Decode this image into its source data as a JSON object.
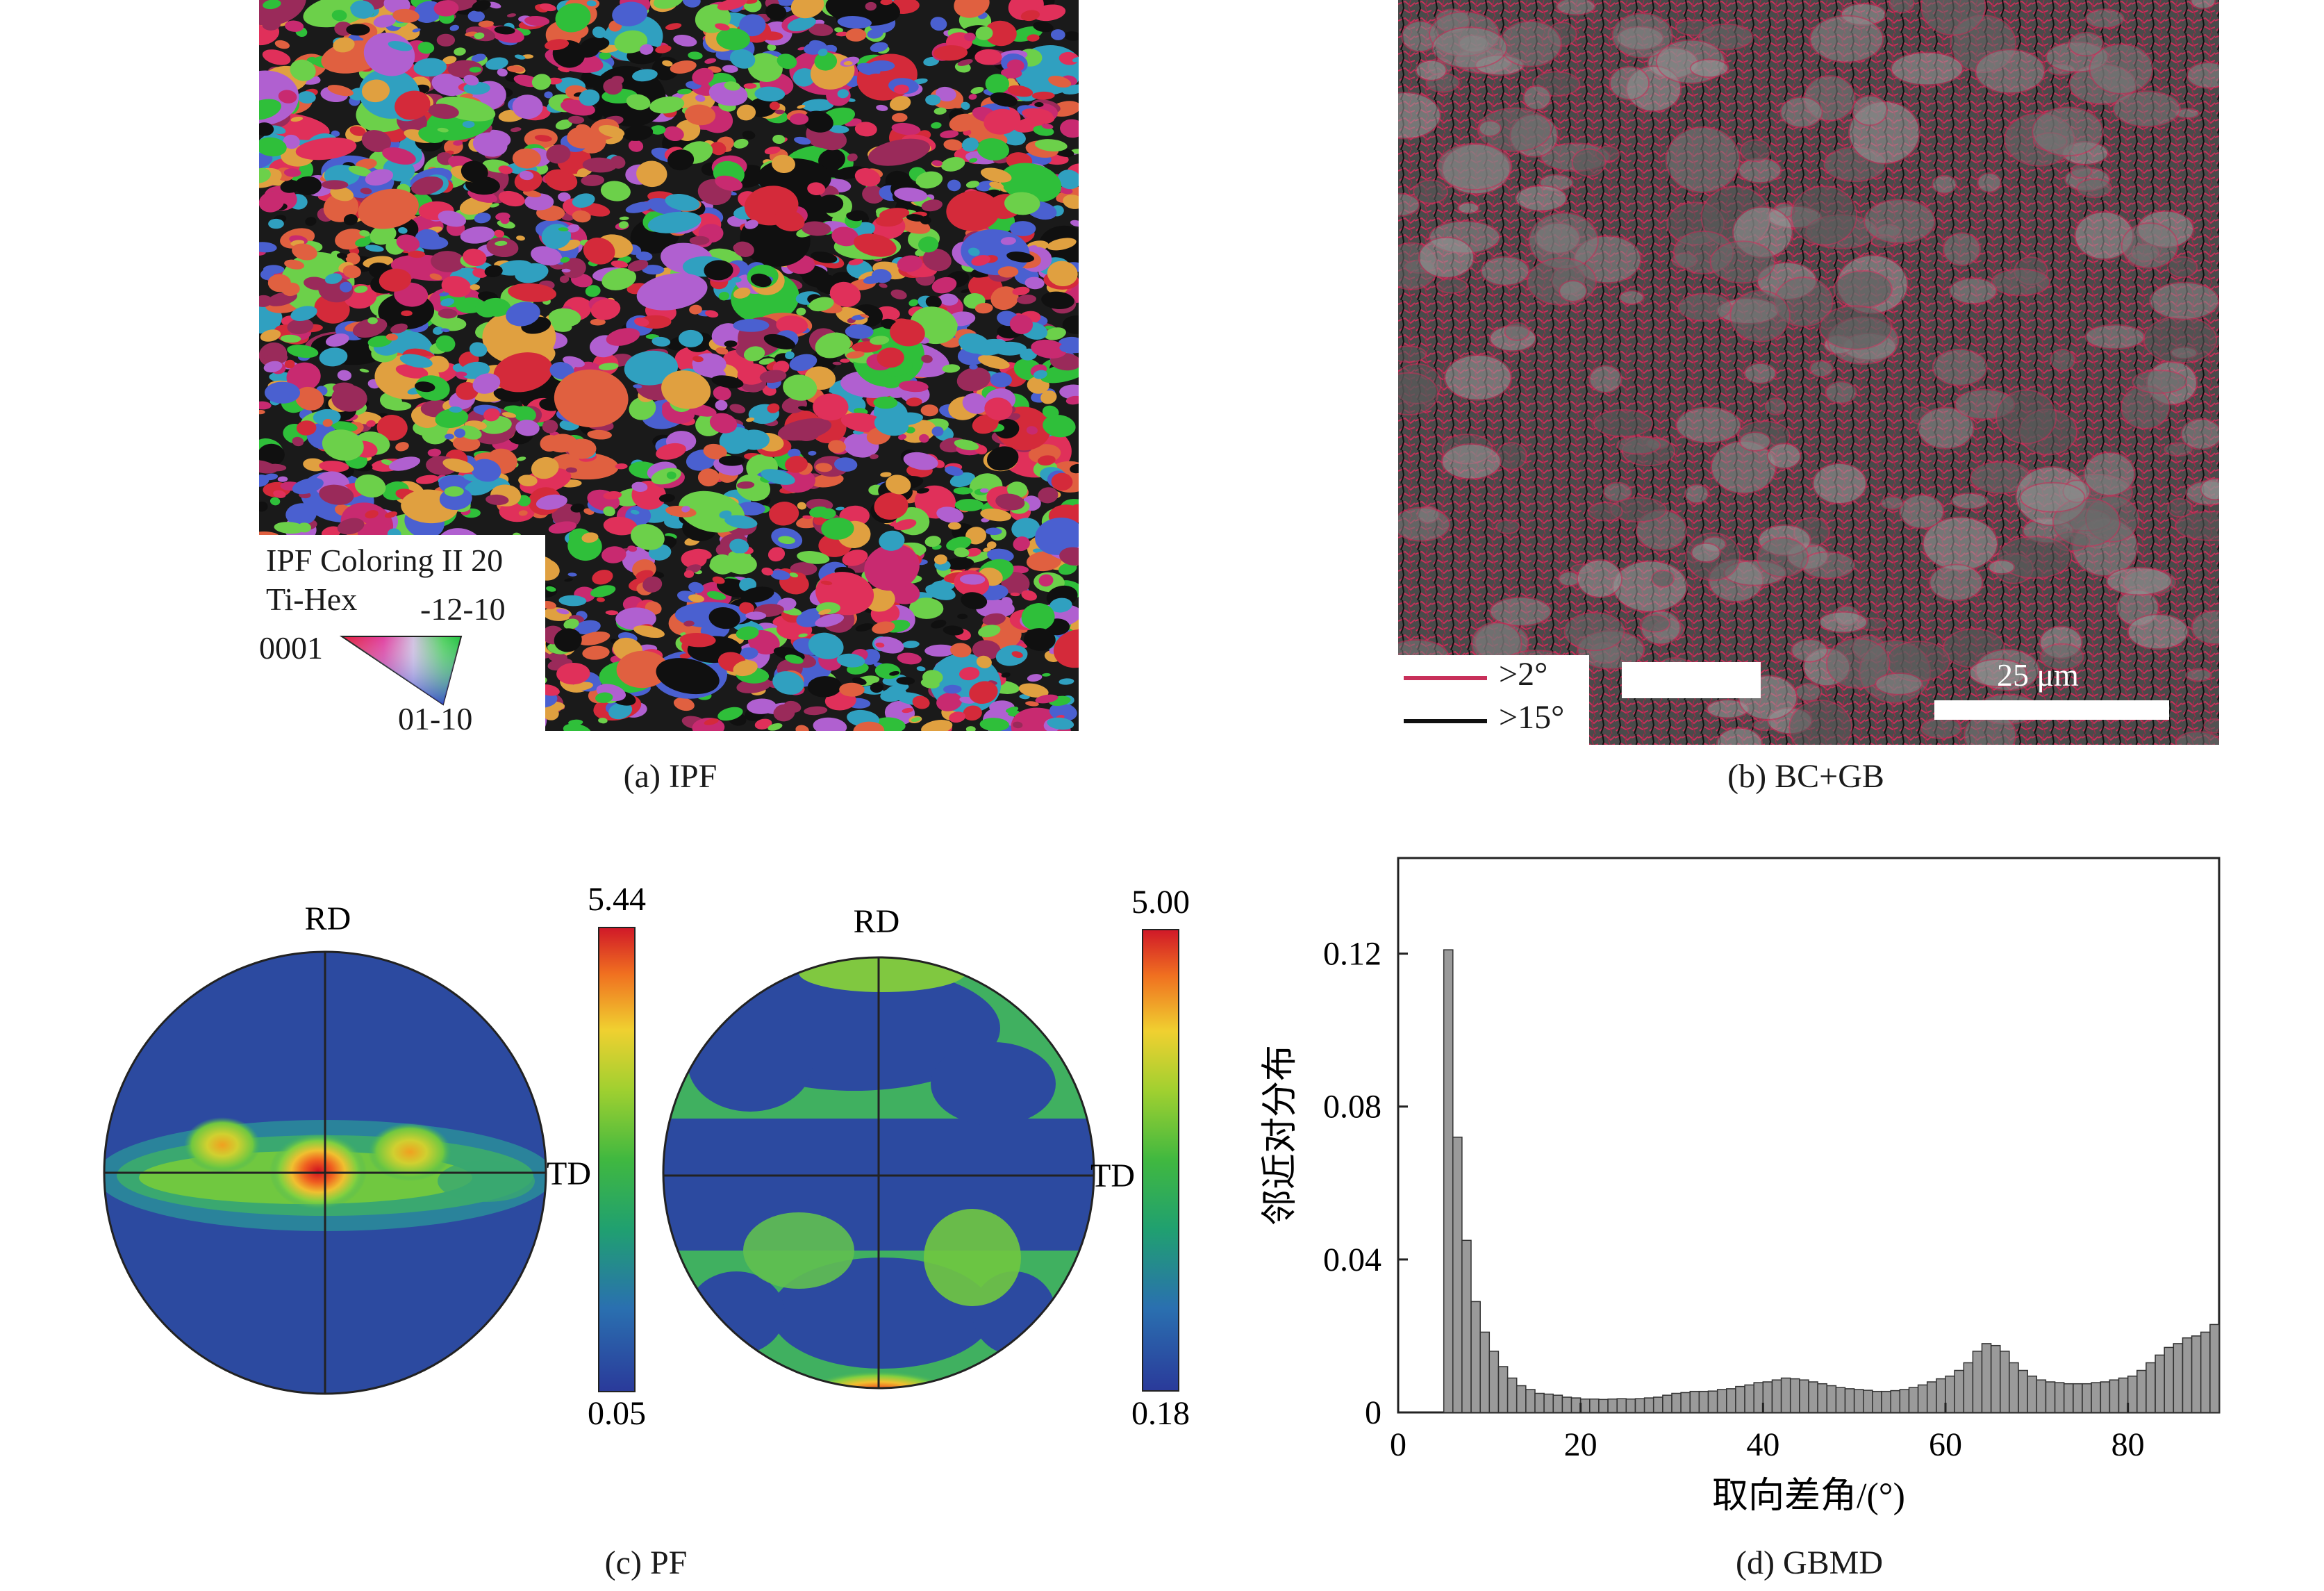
{
  "panel_a": {
    "caption": "(a) IPF",
    "legend_title_line1": "IPF Coloring II 20",
    "legend_title_line2": "Ti-Hex",
    "corner_top": "-12-10",
    "corner_left": "0001",
    "corner_bottom": "01-10",
    "colors": [
      "#d42a3a",
      "#e0305a",
      "#c82a70",
      "#2fbf3a",
      "#6cd04a",
      "#b060d0",
      "#e0a040",
      "#4a60d0",
      "#9a2a5a",
      "#30a0c0",
      "#e06040",
      "#101010"
    ]
  },
  "panel_b": {
    "caption": "(b) BC+GB",
    "legend_low": ">2°",
    "legend_high": ">15°",
    "scale_label": "25 μm",
    "low_angle_color": "#c8305a",
    "high_angle_color": "#101010"
  },
  "panel_c": {
    "caption": "(c) PF",
    "pole_figures": [
      {
        "rd_label": "RD",
        "td_label": "TD",
        "scale_max": "5.44",
        "scale_min": "0.05"
      },
      {
        "rd_label": "RD",
        "td_label": "TD",
        "scale_max": "5.00",
        "scale_min": "0.18"
      }
    ]
  },
  "panel_d": {
    "caption": "(d) GBMD",
    "chart_data": {
      "type": "bar",
      "xlabel": "取向差角/(°)",
      "ylabel": "邻近对分布",
      "xlim": [
        0,
        90
      ],
      "ylim": [
        0,
        0.145
      ],
      "xticks": [
        0,
        20,
        40,
        60,
        80
      ],
      "yticks": [
        0,
        0.04,
        0.08,
        0.12
      ],
      "ytick_labels": [
        "0",
        "0.04",
        "0.08",
        "0.12"
      ],
      "bar_width": 1,
      "x": [
        5.5,
        6.5,
        7.5,
        8.5,
        9.5,
        10.5,
        11.5,
        12.5,
        13.5,
        14.5,
        15.5,
        16.5,
        17.5,
        18.5,
        19.5,
        20.5,
        21.5,
        22.5,
        23.5,
        24.5,
        25.5,
        26.5,
        27.5,
        28.5,
        29.5,
        30.5,
        31.5,
        32.5,
        33.5,
        34.5,
        35.5,
        36.5,
        37.5,
        38.5,
        39.5,
        40.5,
        41.5,
        42.5,
        43.5,
        44.5,
        45.5,
        46.5,
        47.5,
        48.5,
        49.5,
        50.5,
        51.5,
        52.5,
        53.5,
        54.5,
        55.5,
        56.5,
        57.5,
        58.5,
        59.5,
        60.5,
        61.5,
        62.5,
        63.5,
        64.5,
        65.5,
        66.5,
        67.5,
        68.5,
        69.5,
        70.5,
        71.5,
        72.5,
        73.5,
        74.5,
        75.5,
        76.5,
        77.5,
        78.5,
        79.5,
        80.5,
        81.5,
        82.5,
        83.5,
        84.5,
        85.5,
        86.5,
        87.5,
        88.5,
        89.5
      ],
      "values": [
        0.121,
        0.072,
        0.045,
        0.029,
        0.021,
        0.016,
        0.012,
        0.009,
        0.007,
        0.006,
        0.005,
        0.0048,
        0.0045,
        0.004,
        0.0038,
        0.0035,
        0.0035,
        0.0034,
        0.0035,
        0.0036,
        0.0035,
        0.0036,
        0.0038,
        0.004,
        0.0045,
        0.005,
        0.0052,
        0.0055,
        0.0055,
        0.0056,
        0.006,
        0.0062,
        0.0068,
        0.0072,
        0.0078,
        0.008,
        0.0085,
        0.009,
        0.0088,
        0.0085,
        0.008,
        0.0075,
        0.007,
        0.0065,
        0.0062,
        0.006,
        0.0058,
        0.0055,
        0.0055,
        0.0057,
        0.006,
        0.0065,
        0.0072,
        0.008,
        0.0088,
        0.0095,
        0.011,
        0.013,
        0.016,
        0.018,
        0.0175,
        0.016,
        0.013,
        0.011,
        0.0095,
        0.0085,
        0.008,
        0.0078,
        0.0075,
        0.0075,
        0.0075,
        0.0078,
        0.008,
        0.0085,
        0.009,
        0.0095,
        0.011,
        0.013,
        0.015,
        0.017,
        0.018,
        0.0195,
        0.02,
        0.021,
        0.023
      ]
    }
  }
}
